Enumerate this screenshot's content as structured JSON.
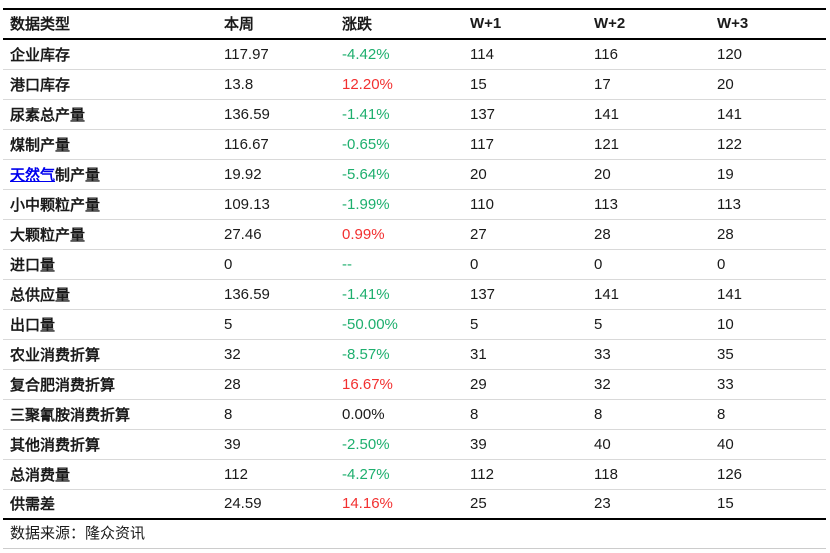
{
  "table": {
    "columns": [
      "数据类型",
      "本周",
      "涨跌",
      "W+1",
      "W+2",
      "W+3"
    ],
    "rows": [
      {
        "label": "企业库存",
        "week": "117.97",
        "change": "-4.42%",
        "trend": "down",
        "w1": "114",
        "w2": "116",
        "w3": "120"
      },
      {
        "label": "港口库存",
        "week": "13.8",
        "change": "12.20%",
        "trend": "up",
        "w1": "15",
        "w2": "17",
        "w3": "20"
      },
      {
        "label": "尿素总产量",
        "week": "136.59",
        "change": "-1.41%",
        "trend": "down",
        "w1": "137",
        "w2": "141",
        "w3": "141"
      },
      {
        "label": "煤制产量",
        "week": "116.67",
        "change": "-0.65%",
        "trend": "down",
        "w1": "117",
        "w2": "121",
        "w3": "122"
      },
      {
        "link": "天然气",
        "label": "制产量",
        "week": "19.92",
        "change": "-5.64%",
        "trend": "down",
        "w1": "20",
        "w2": "20",
        "w3": "19"
      },
      {
        "label": "小中颗粒产量",
        "week": "109.13",
        "change": "-1.99%",
        "trend": "down",
        "w1": "110",
        "w2": "113",
        "w3": "113"
      },
      {
        "label": "大颗粒产量",
        "week": "27.46",
        "change": "0.99%",
        "trend": "up",
        "w1": "27",
        "w2": "28",
        "w3": "28"
      },
      {
        "label": "进口量",
        "week": "0",
        "change": "--",
        "trend": "na",
        "w1": "0",
        "w2": "0",
        "w3": "0"
      },
      {
        "label": "总供应量",
        "week": "136.59",
        "change": "-1.41%",
        "trend": "down",
        "w1": "137",
        "w2": "141",
        "w3": "141"
      },
      {
        "label": "出口量",
        "week": "5",
        "change": "-50.00%",
        "trend": "down",
        "w1": "5",
        "w2": "5",
        "w3": "10"
      },
      {
        "label": "农业消费折算",
        "week": "32",
        "change": "-8.57%",
        "trend": "down",
        "w1": "31",
        "w2": "33",
        "w3": "35"
      },
      {
        "label": "复合肥消费折算",
        "week": "28",
        "change": "16.67%",
        "trend": "up",
        "w1": "29",
        "w2": "32",
        "w3": "33"
      },
      {
        "label": "三聚氰胺消费折算",
        "week": "8",
        "change": "0.00%",
        "trend": "flat",
        "w1": "8",
        "w2": "8",
        "w3": "8"
      },
      {
        "label": "其他消费折算",
        "week": "39",
        "change": "-2.50%",
        "trend": "down",
        "w1": "39",
        "w2": "40",
        "w3": "40"
      },
      {
        "label": "总消费量",
        "week": "112",
        "change": "-4.27%",
        "trend": "down",
        "w1": "112",
        "w2": "118",
        "w3": "126"
      },
      {
        "label": "供需差",
        "week": "24.59",
        "change": "14.16%",
        "trend": "up",
        "w1": "25",
        "w2": "23",
        "w3": "15"
      }
    ],
    "source": "数据来源：隆众资讯"
  },
  "colors": {
    "up": "#f23030",
    "down": "#1eaf6e",
    "flat": "#1a1a1a",
    "na": "#1eaf6e",
    "link": "#0000ee",
    "text": "#1a1a1a",
    "row_divider": "#d9d9d9",
    "heavy_rule": "#000000"
  }
}
